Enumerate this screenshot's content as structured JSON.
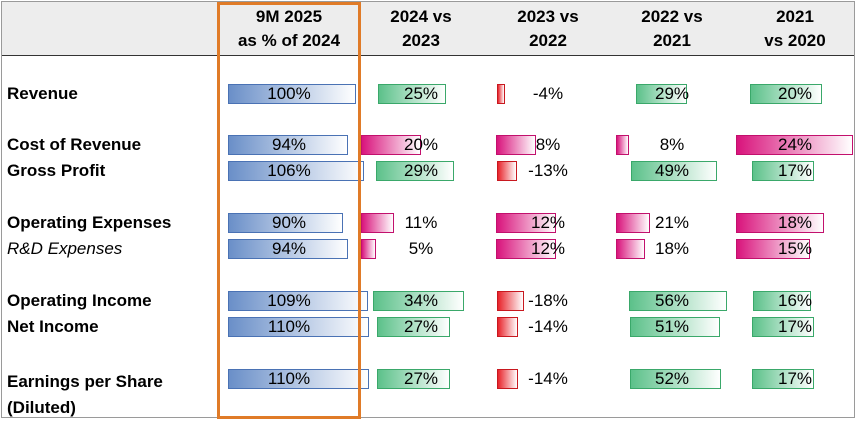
{
  "columns": [
    {
      "header": "9M 2025\nas % of 2024",
      "color": "blue"
    },
    {
      "header": "2024 vs\n2023"
    },
    {
      "header": "2023 vs\n2022"
    },
    {
      "header": "2022 vs\n2021"
    },
    {
      "header": "2021\nvs 2020"
    }
  ],
  "colors": {
    "blue_dark": "#6a8fc8",
    "blue_border": "#4a72b4",
    "green_dark": "#5cc18a",
    "green_border": "#3aa86a",
    "pink_dark": "#d9147c",
    "pink_border": "#c2106d",
    "red_dark": "#e8232a",
    "red_border": "#c8181f",
    "highlight": "#e07b28"
  },
  "chart_data": {
    "type": "table",
    "rows": [
      {
        "label": "Revenue",
        "style": "bold",
        "values": [
          "100%",
          "25%",
          "-4%",
          "29%",
          "20%"
        ],
        "nums": [
          100,
          25,
          -4,
          29,
          20
        ]
      },
      {
        "label": "Cost of Revenue",
        "style": "bold",
        "values": [
          "94%",
          "20%",
          "8%",
          "8%",
          "24%"
        ],
        "nums": [
          94,
          20,
          8,
          8,
          24
        ],
        "cost": true
      },
      {
        "label": "Gross Profit",
        "style": "bold",
        "values": [
          "106%",
          "29%",
          "-13%",
          "49%",
          "17%"
        ],
        "nums": [
          106,
          29,
          -13,
          49,
          17
        ]
      },
      {
        "label": "Operating Expenses",
        "style": "bold",
        "values": [
          "90%",
          "11%",
          "12%",
          "21%",
          "18%"
        ],
        "nums": [
          90,
          11,
          12,
          21,
          18
        ],
        "cost": true
      },
      {
        "label": "R&D Expenses",
        "style": "italic",
        "values": [
          "94%",
          "5%",
          "12%",
          "18%",
          "15%"
        ],
        "nums": [
          94,
          5,
          12,
          18,
          15
        ],
        "cost": true
      },
      {
        "label": "Operating Income",
        "style": "bold",
        "values": [
          "109%",
          "34%",
          "-18%",
          "56%",
          "16%"
        ],
        "nums": [
          109,
          34,
          -18,
          56,
          16
        ]
      },
      {
        "label": "Net Income",
        "style": "bold",
        "values": [
          "110%",
          "27%",
          "-14%",
          "51%",
          "17%"
        ],
        "nums": [
          110,
          27,
          -14,
          51,
          17
        ]
      },
      {
        "label": "Earnings per Share\n(Diluted)",
        "style": "bold",
        "values": [
          "110%",
          "27%",
          "-14%",
          "52%",
          "17%"
        ],
        "nums": [
          110,
          27,
          -14,
          52,
          17
        ]
      }
    ]
  }
}
